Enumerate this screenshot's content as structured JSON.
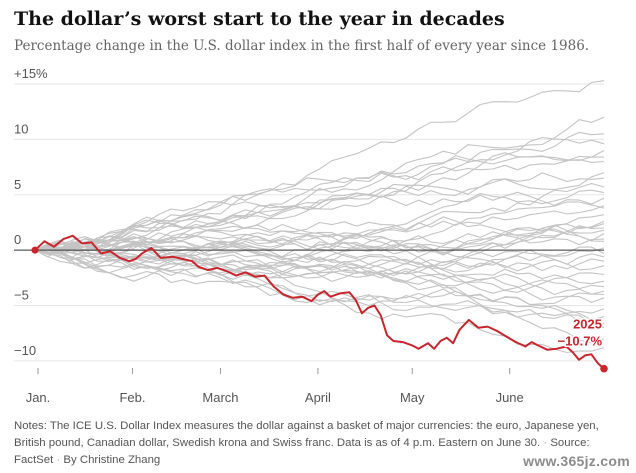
{
  "title": "The dollar’s worst start to the year in decades",
  "subtitle": "Percentage change in the U.S. dollar index in the first half of every year since 1986.",
  "notes": {
    "text": "Notes: The ICE U.S. Dollar Index measures the dollar against a basket of major currencies: the euro, Japanese yen, British pound, Canadian dollar, Swedish krona and Swiss franc. Data is as of 4 p.m. Eastern on June 30.",
    "source": "Source: FactSet",
    "byline": "By Christine Zhang"
  },
  "watermark": "www.365jz.com",
  "colors": {
    "highlight": "#c8262c",
    "history": "#c4c4c4",
    "zero_line": "#333333",
    "grid": "#e6e6e6",
    "text": "#121212",
    "muted": "#666666"
  },
  "chart_data": {
    "type": "line",
    "title": "The dollar’s worst start to the year in decades",
    "x_ticks": [
      {
        "label": "Jan.",
        "day": 0
      },
      {
        "label": "Feb.",
        "day": 31
      },
      {
        "label": "March",
        "day": 59
      },
      {
        "label": "April",
        "day": 90
      },
      {
        "label": "May",
        "day": 120
      },
      {
        "label": "June",
        "day": 151
      }
    ],
    "y_ticks": [
      {
        "label": "+15%",
        "value": 15
      },
      {
        "label": "10",
        "value": 10
      },
      {
        "label": "5",
        "value": 5
      },
      {
        "label": "0",
        "value": 0
      },
      {
        "label": "−5",
        "value": -5
      },
      {
        "label": "−10",
        "value": -10
      }
    ],
    "xlim": [
      0,
      181
    ],
    "ylim": [
      -11,
      15
    ],
    "grid": true,
    "highlight": {
      "name": "2025",
      "final_label": "−10.7%",
      "points": [
        [
          0,
          0
        ],
        [
          3,
          0.8
        ],
        [
          6,
          0.3
        ],
        [
          9,
          1.0
        ],
        [
          12,
          1.3
        ],
        [
          15,
          0.6
        ],
        [
          18,
          0.7
        ],
        [
          21,
          -0.3
        ],
        [
          24,
          -0.1
        ],
        [
          27,
          -0.7
        ],
        [
          30,
          -1.0
        ],
        [
          32,
          -0.8
        ],
        [
          34,
          -0.3
        ],
        [
          37,
          0.2
        ],
        [
          40,
          -0.7
        ],
        [
          44,
          -0.6
        ],
        [
          47,
          -0.8
        ],
        [
          50,
          -1.0
        ],
        [
          52,
          -1.5
        ],
        [
          55,
          -1.8
        ],
        [
          58,
          -1.6
        ],
        [
          61,
          -1.9
        ],
        [
          64,
          -2.3
        ],
        [
          67,
          -2.0
        ],
        [
          70,
          -2.4
        ],
        [
          73,
          -2.3
        ],
        [
          76,
          -3.3
        ],
        [
          79,
          -4.0
        ],
        [
          82,
          -4.3
        ],
        [
          85,
          -4.2
        ],
        [
          88,
          -4.6
        ],
        [
          90,
          -4.0
        ],
        [
          92,
          -3.7
        ],
        [
          94,
          -4.2
        ],
        [
          97,
          -3.9
        ],
        [
          100,
          -3.8
        ],
        [
          102,
          -4.5
        ],
        [
          104,
          -5.7
        ],
        [
          106,
          -5.2
        ],
        [
          108,
          -5.0
        ],
        [
          110,
          -5.9
        ],
        [
          112,
          -7.7
        ],
        [
          114,
          -8.2
        ],
        [
          117,
          -8.3
        ],
        [
          120,
          -8.6
        ],
        [
          122,
          -8.9
        ],
        [
          125,
          -8.4
        ],
        [
          127,
          -8.9
        ],
        [
          129,
          -8.2
        ],
        [
          131,
          -7.9
        ],
        [
          133,
          -8.4
        ],
        [
          135,
          -7.2
        ],
        [
          138,
          -6.3
        ],
        [
          141,
          -7.0
        ],
        [
          144,
          -6.9
        ],
        [
          147,
          -7.3
        ],
        [
          150,
          -7.8
        ],
        [
          153,
          -8.3
        ],
        [
          156,
          -8.7
        ],
        [
          158,
          -8.3
        ],
        [
          160,
          -8.6
        ],
        [
          163,
          -9.0
        ],
        [
          166,
          -8.9
        ],
        [
          169,
          -8.7
        ],
        [
          171,
          -9.2
        ],
        [
          173,
          -9.9
        ],
        [
          175,
          -9.5
        ],
        [
          177,
          -9.4
        ],
        [
          179,
          -10.2
        ],
        [
          181,
          -10.7
        ]
      ]
    },
    "history_finals": [
      15.3,
      10.5,
      9.6,
      8.4,
      6.5,
      5.7,
      4.7,
      3.2,
      2.6,
      1.8,
      1.0,
      0.2,
      -0.6,
      -1.4,
      -2.2,
      -3.3,
      -4.3,
      -5.3,
      -6.0,
      -7.0,
      -8.0,
      -8.8,
      12.0,
      2.0,
      -1.0,
      7.0,
      4.0,
      -4.0,
      1.5,
      9.0,
      -2.8,
      3.8,
      -0.3,
      5.2,
      -6.6,
      8.0,
      0.8,
      -3.7,
      2.4
    ],
    "final_point_value": -10.7
  }
}
